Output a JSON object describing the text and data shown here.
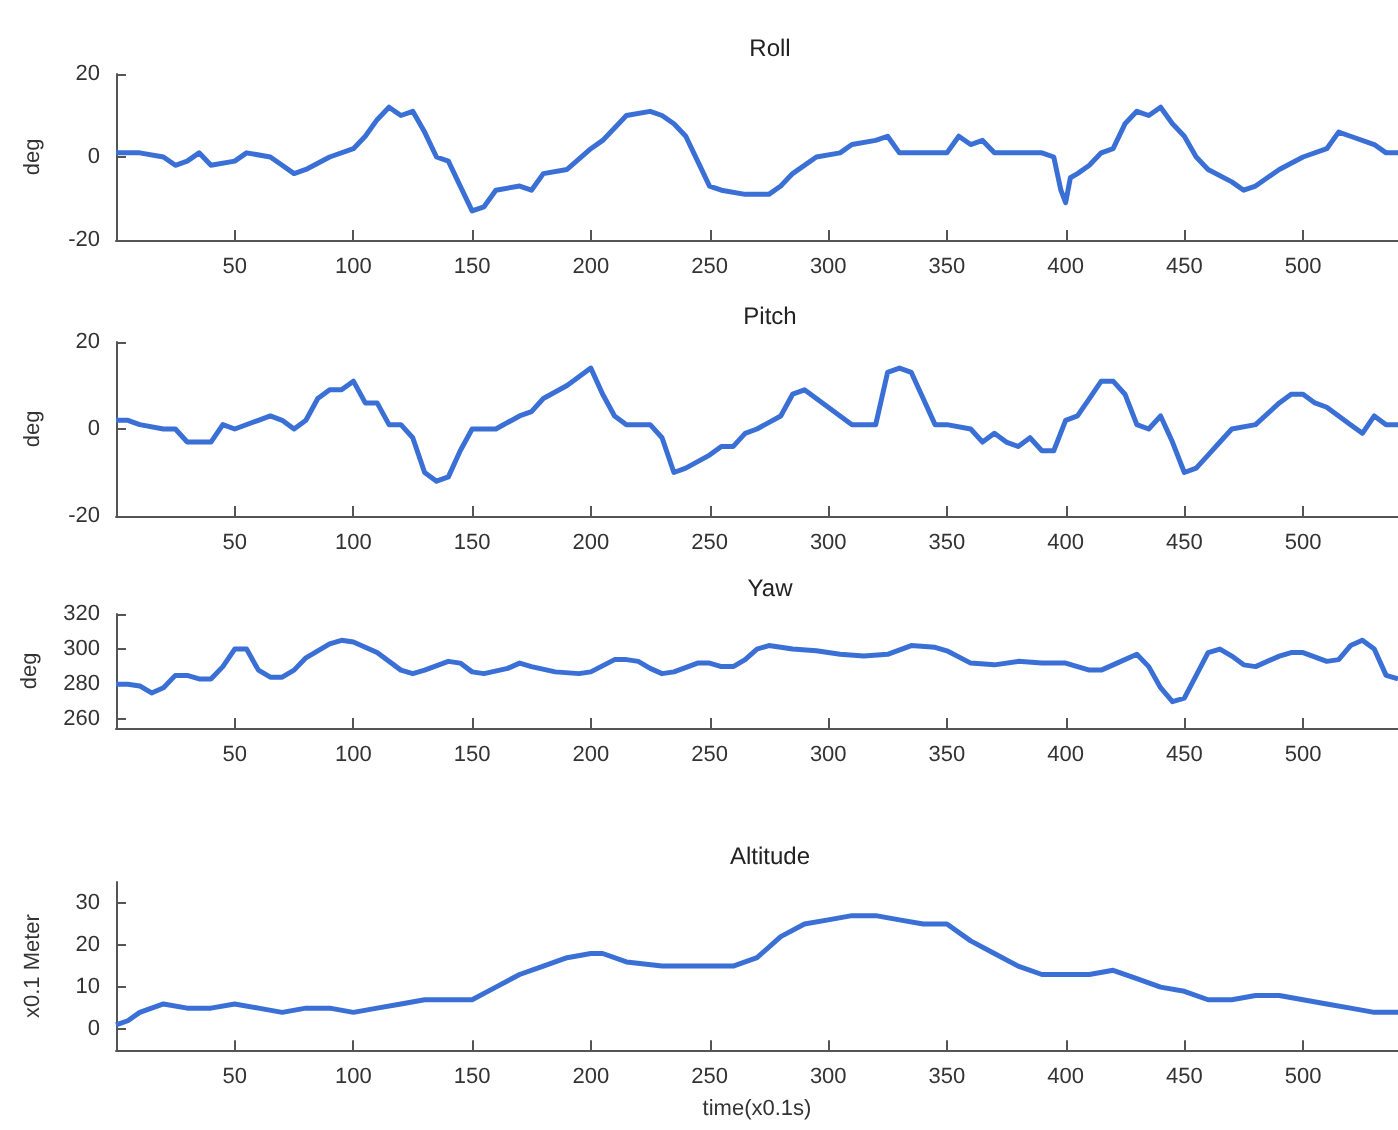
{
  "chart_data": [
    {
      "type": "line",
      "title": "Roll",
      "ylabel": "deg",
      "color": "#3a6fd6",
      "marker": "none",
      "grid": false,
      "xlim": [
        0,
        540
      ],
      "xticks": [
        50,
        100,
        150,
        200,
        250,
        300,
        350,
        400,
        450,
        500
      ],
      "ylim": [
        -20,
        20
      ],
      "yticks": [
        -20,
        0,
        20
      ],
      "x": [
        0,
        10,
        20,
        25,
        30,
        35,
        40,
        50,
        55,
        65,
        70,
        75,
        80,
        90,
        100,
        105,
        110,
        115,
        120,
        125,
        130,
        135,
        140,
        145,
        150,
        155,
        160,
        170,
        175,
        180,
        190,
        200,
        205,
        210,
        215,
        225,
        230,
        235,
        240,
        245,
        250,
        255,
        265,
        275,
        280,
        285,
        295,
        305,
        310,
        320,
        325,
        330,
        340,
        350,
        355,
        360,
        365,
        370,
        380,
        390,
        395,
        398,
        400,
        402,
        405,
        410,
        415,
        420,
        425,
        430,
        435,
        440,
        445,
        450,
        455,
        460,
        470,
        475,
        480,
        490,
        500,
        510,
        515,
        520,
        530,
        535,
        540
      ],
      "values": [
        1,
        1,
        0,
        -2,
        -1,
        1,
        -2,
        -1,
        1,
        0,
        -2,
        -4,
        -3,
        0,
        2,
        5,
        9,
        12,
        10,
        11,
        6,
        0,
        -1,
        -7,
        -13,
        -12,
        -8,
        -7,
        -8,
        -4,
        -3,
        2,
        4,
        7,
        10,
        11,
        10,
        8,
        5,
        -1,
        -7,
        -8,
        -9,
        -9,
        -7,
        -4,
        0,
        1,
        3,
        4,
        5,
        1,
        1,
        1,
        5,
        3,
        4,
        1,
        1,
        1,
        0,
        -8,
        -11,
        -5,
        -4,
        -2,
        1,
        2,
        8,
        11,
        10,
        12,
        8,
        5,
        0,
        -3,
        -6,
        -8,
        -7,
        -3,
        0,
        2,
        6,
        5,
        3,
        1,
        1
      ]
    },
    {
      "type": "line",
      "title": "Pitch",
      "ylabel": "deg",
      "color": "#3a6fd6",
      "marker": "none",
      "grid": false,
      "xlim": [
        0,
        540
      ],
      "xticks": [
        50,
        100,
        150,
        200,
        250,
        300,
        350,
        400,
        450,
        500
      ],
      "ylim": [
        -20,
        20
      ],
      "yticks": [
        -20,
        0,
        20
      ],
      "x": [
        0,
        5,
        10,
        20,
        25,
        30,
        35,
        40,
        45,
        50,
        60,
        65,
        70,
        75,
        80,
        85,
        90,
        95,
        100,
        105,
        110,
        115,
        120,
        125,
        130,
        135,
        140,
        145,
        150,
        160,
        170,
        175,
        180,
        190,
        195,
        200,
        205,
        210,
        215,
        225,
        230,
        235,
        240,
        250,
        255,
        260,
        265,
        270,
        280,
        285,
        290,
        295,
        300,
        305,
        310,
        320,
        325,
        330,
        335,
        340,
        345,
        350,
        360,
        365,
        370,
        375,
        380,
        385,
        390,
        395,
        400,
        405,
        410,
        415,
        420,
        425,
        430,
        435,
        440,
        445,
        450,
        455,
        460,
        465,
        470,
        480,
        490,
        495,
        500,
        505,
        510,
        520,
        525,
        530,
        535,
        540
      ],
      "values": [
        2,
        2,
        1,
        0,
        0,
        -3,
        -3,
        -3,
        1,
        0,
        2,
        3,
        2,
        0,
        2,
        7,
        9,
        9,
        11,
        6,
        6,
        1,
        1,
        -2,
        -10,
        -12,
        -11,
        -5,
        0,
        0,
        3,
        4,
        7,
        10,
        12,
        14,
        8,
        3,
        1,
        1,
        -2,
        -10,
        -9,
        -6,
        -4,
        -4,
        -1,
        0,
        3,
        8,
        9,
        7,
        5,
        3,
        1,
        1,
        13,
        14,
        13,
        7,
        1,
        1,
        0,
        -3,
        -1,
        -3,
        -4,
        -2,
        -5,
        -5,
        2,
        3,
        7,
        11,
        11,
        8,
        1,
        0,
        3,
        -3,
        -10,
        -9,
        -6,
        -3,
        0,
        1,
        6,
        8,
        8,
        6,
        5,
        1,
        -1,
        3,
        1,
        1
      ]
    },
    {
      "type": "line",
      "title": "Yaw",
      "ylabel": "deg",
      "color": "#3a6fd6",
      "marker": "none",
      "grid": false,
      "xlim": [
        0,
        540
      ],
      "xticks": [
        50,
        100,
        150,
        200,
        250,
        300,
        350,
        400,
        450,
        500
      ],
      "ylim": [
        255,
        320
      ],
      "yticks": [
        260,
        280,
        300,
        320
      ],
      "x": [
        0,
        5,
        10,
        15,
        20,
        25,
        30,
        35,
        40,
        45,
        50,
        55,
        60,
        65,
        70,
        75,
        80,
        90,
        95,
        100,
        110,
        120,
        125,
        130,
        140,
        145,
        150,
        155,
        165,
        170,
        175,
        185,
        195,
        200,
        210,
        215,
        220,
        225,
        230,
        235,
        245,
        250,
        255,
        260,
        265,
        270,
        275,
        285,
        295,
        305,
        315,
        325,
        335,
        345,
        350,
        360,
        370,
        380,
        390,
        400,
        410,
        415,
        420,
        430,
        435,
        440,
        445,
        450,
        455,
        460,
        465,
        470,
        475,
        480,
        490,
        495,
        500,
        510,
        515,
        520,
        525,
        530,
        535,
        540
      ],
      "values": [
        280,
        280,
        279,
        275,
        278,
        285,
        285,
        283,
        283,
        290,
        300,
        300,
        288,
        284,
        284,
        288,
        295,
        303,
        305,
        304,
        298,
        288,
        286,
        288,
        293,
        292,
        287,
        286,
        289,
        292,
        290,
        287,
        286,
        287,
        294,
        294,
        293,
        289,
        286,
        287,
        292,
        292,
        290,
        290,
        294,
        300,
        302,
        300,
        299,
        297,
        296,
        297,
        302,
        301,
        299,
        292,
        291,
        293,
        292,
        292,
        288,
        288,
        291,
        297,
        290,
        278,
        270,
        272,
        285,
        298,
        300,
        296,
        291,
        290,
        296,
        298,
        298,
        293,
        294,
        302,
        305,
        300,
        285,
        283
      ]
    },
    {
      "type": "line",
      "title": "Altitude",
      "ylabel": "x0.1 Meter",
      "xlabel": "time(x0.1s)",
      "color": "#3a6fd6",
      "marker": "none",
      "grid": false,
      "xlim": [
        0,
        540
      ],
      "xticks": [
        50,
        100,
        150,
        200,
        250,
        300,
        350,
        400,
        450,
        500
      ],
      "ylim": [
        -5,
        35
      ],
      "yticks": [
        0,
        10,
        20,
        30
      ],
      "x": [
        0,
        5,
        10,
        20,
        30,
        40,
        50,
        60,
        70,
        80,
        90,
        100,
        110,
        120,
        130,
        140,
        150,
        160,
        170,
        180,
        190,
        200,
        205,
        215,
        230,
        240,
        250,
        260,
        270,
        280,
        290,
        300,
        310,
        320,
        330,
        340,
        350,
        360,
        370,
        380,
        390,
        400,
        410,
        420,
        430,
        440,
        450,
        460,
        470,
        480,
        490,
        500,
        510,
        520,
        530,
        540
      ],
      "values": [
        1,
        2,
        4,
        6,
        5,
        5,
        6,
        5,
        4,
        5,
        5,
        4,
        5,
        6,
        7,
        7,
        7,
        10,
        13,
        15,
        17,
        18,
        18,
        16,
        15,
        15,
        15,
        15,
        17,
        22,
        25,
        26,
        27,
        27,
        26,
        25,
        25,
        21,
        18,
        15,
        13,
        13,
        13,
        14,
        12,
        10,
        9,
        7,
        7,
        8,
        8,
        7,
        6,
        5,
        4,
        4
      ]
    }
  ]
}
